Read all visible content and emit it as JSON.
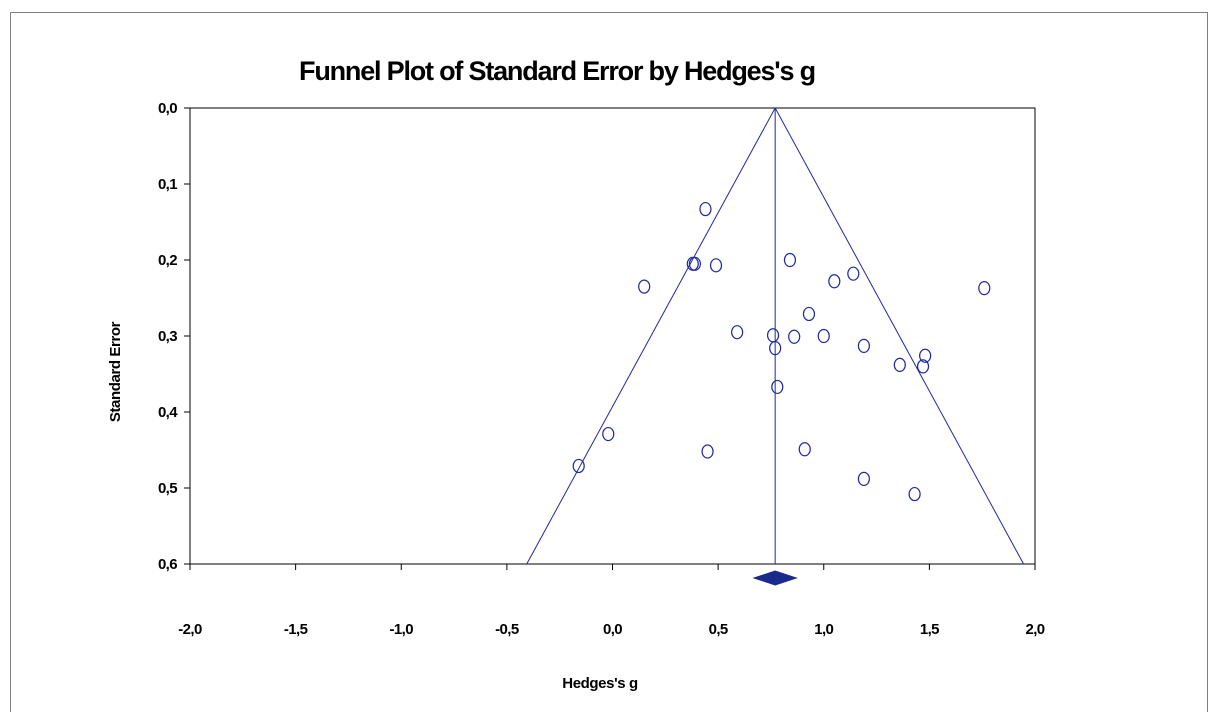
{
  "chart_data": {
    "type": "scatter",
    "title": "Funnel Plot of Standard Error by Hedges's g",
    "xlabel": "Hedges's g",
    "ylabel": "Standard Error",
    "xlim": [
      -2.0,
      2.0
    ],
    "ylim": [
      0.0,
      0.6
    ],
    "y_inverted": true,
    "x_ticks": [
      "-2,0",
      "-1,5",
      "-1,0",
      "-0,5",
      "0,0",
      "0,5",
      "1,0",
      "1,5",
      "2,0"
    ],
    "x_tick_values": [
      -2.0,
      -1.5,
      -1.0,
      -0.5,
      0.0,
      0.5,
      1.0,
      1.5,
      2.0
    ],
    "y_ticks": [
      "0,0",
      "0,1",
      "0,2",
      "0,3",
      "0,4",
      "0,5",
      "0,6"
    ],
    "y_tick_values": [
      0.0,
      0.1,
      0.2,
      0.3,
      0.4,
      0.5,
      0.6
    ],
    "grid": false,
    "pooled_estimate": 0.77,
    "funnel": {
      "apex_se": 0.0,
      "limit_multiplier": 1.96
    },
    "marker": "open-circle",
    "line_color": "#1f2a9e",
    "diamond_color": "#1a2a8c",
    "diamond_ci": [
      0.67,
      0.87
    ],
    "series": [
      {
        "points": [
          {
            "x": 0.44,
            "y": 0.133
          },
          {
            "x": 0.38,
            "y": 0.205
          },
          {
            "x": 0.39,
            "y": 0.205
          },
          {
            "x": 0.49,
            "y": 0.207
          },
          {
            "x": 0.15,
            "y": 0.235
          },
          {
            "x": 0.84,
            "y": 0.2
          },
          {
            "x": 1.05,
            "y": 0.228
          },
          {
            "x": 1.14,
            "y": 0.218
          },
          {
            "x": 1.76,
            "y": 0.237
          },
          {
            "x": 0.93,
            "y": 0.271
          },
          {
            "x": 0.59,
            "y": 0.295
          },
          {
            "x": 0.76,
            "y": 0.299
          },
          {
            "x": 0.77,
            "y": 0.316
          },
          {
            "x": 0.86,
            "y": 0.301
          },
          {
            "x": 1.0,
            "y": 0.3
          },
          {
            "x": 1.19,
            "y": 0.313
          },
          {
            "x": 1.48,
            "y": 0.326
          },
          {
            "x": 1.36,
            "y": 0.338
          },
          {
            "x": 1.47,
            "y": 0.34
          },
          {
            "x": 0.78,
            "y": 0.367
          },
          {
            "x": -0.02,
            "y": 0.429
          },
          {
            "x": -0.16,
            "y": 0.471
          },
          {
            "x": 0.45,
            "y": 0.452
          },
          {
            "x": 0.91,
            "y": 0.449
          },
          {
            "x": 1.19,
            "y": 0.488
          },
          {
            "x": 1.43,
            "y": 0.508
          }
        ]
      }
    ]
  }
}
